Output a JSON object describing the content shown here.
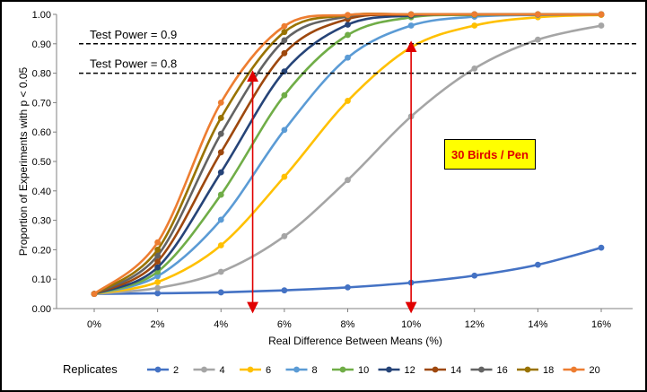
{
  "chart_data": {
    "type": "line",
    "xlabel": "Real Difference Between Means (%)",
    "ylabel": "Proportion of Experiments with p < 0.05",
    "x": [
      0,
      2,
      4,
      6,
      8,
      10,
      12,
      14,
      16
    ],
    "x_tick_labels": [
      "0%",
      "2%",
      "4%",
      "6%",
      "8%",
      "10%",
      "12%",
      "14%",
      "16%"
    ],
    "y_tick_labels": [
      "0.00",
      "0.10",
      "0.20",
      "0.30",
      "0.40",
      "0.50",
      "0.60",
      "0.70",
      "0.80",
      "0.90",
      "1.00"
    ],
    "xlim": [
      0,
      16
    ],
    "ylim": [
      0,
      1
    ],
    "grid": false,
    "legend_title": "Replicates",
    "legend_position": "bottom",
    "series": [
      {
        "name": "2",
        "color": "#4472c4",
        "values": [
          0.05,
          0.052,
          0.055,
          0.062,
          0.072,
          0.088,
          0.112,
          0.149,
          0.207
        ]
      },
      {
        "name": "4",
        "color": "#a5a5a5",
        "values": [
          0.05,
          0.07,
          0.125,
          0.246,
          0.437,
          0.653,
          0.816,
          0.914,
          0.962
        ]
      },
      {
        "name": "6",
        "color": "#ffc000",
        "values": [
          0.05,
          0.09,
          0.215,
          0.448,
          0.706,
          0.888,
          0.962,
          0.99,
          0.998
        ]
      },
      {
        "name": "8",
        "color": "#5b9bd5",
        "values": [
          0.05,
          0.11,
          0.302,
          0.607,
          0.853,
          0.962,
          0.992,
          0.998,
          1.0
        ]
      },
      {
        "name": "10",
        "color": "#70ad47",
        "values": [
          0.05,
          0.125,
          0.387,
          0.725,
          0.93,
          0.99,
          0.998,
          1.0,
          1.0
        ]
      },
      {
        "name": "12",
        "color": "#264478",
        "values": [
          0.05,
          0.14,
          0.463,
          0.806,
          0.965,
          0.996,
          1.0,
          1.0,
          1.0
        ]
      },
      {
        "name": "14",
        "color": "#9e480e",
        "values": [
          0.05,
          0.16,
          0.531,
          0.868,
          0.984,
          0.999,
          1.0,
          1.0,
          1.0
        ]
      },
      {
        "name": "16",
        "color": "#636363",
        "values": [
          0.05,
          0.18,
          0.594,
          0.912,
          0.993,
          1.0,
          1.0,
          1.0,
          1.0
        ]
      },
      {
        "name": "18",
        "color": "#997300",
        "values": [
          0.05,
          0.2,
          0.648,
          0.94,
          0.997,
          1.0,
          1.0,
          1.0,
          1.0
        ]
      },
      {
        "name": "20",
        "color": "#ed7d31",
        "values": [
          0.05,
          0.225,
          0.7,
          0.96,
          0.998,
          1.0,
          1.0,
          1.0,
          1.0
        ]
      }
    ],
    "reference_lines": [
      {
        "label": "Test Power =  0.9",
        "y": 0.9
      },
      {
        "label": "Test Power =  0.8",
        "y": 0.8
      }
    ],
    "arrows": [
      {
        "x": 5,
        "y_from": 0,
        "y_to": 0.8,
        "color": "#e00000"
      },
      {
        "x": 10,
        "y_from": 0,
        "y_to": 0.9,
        "color": "#e00000"
      }
    ],
    "annotation_box": {
      "text": "30 Birds / Pen",
      "background": "#ffff00",
      "text_color": "#e00000"
    }
  }
}
